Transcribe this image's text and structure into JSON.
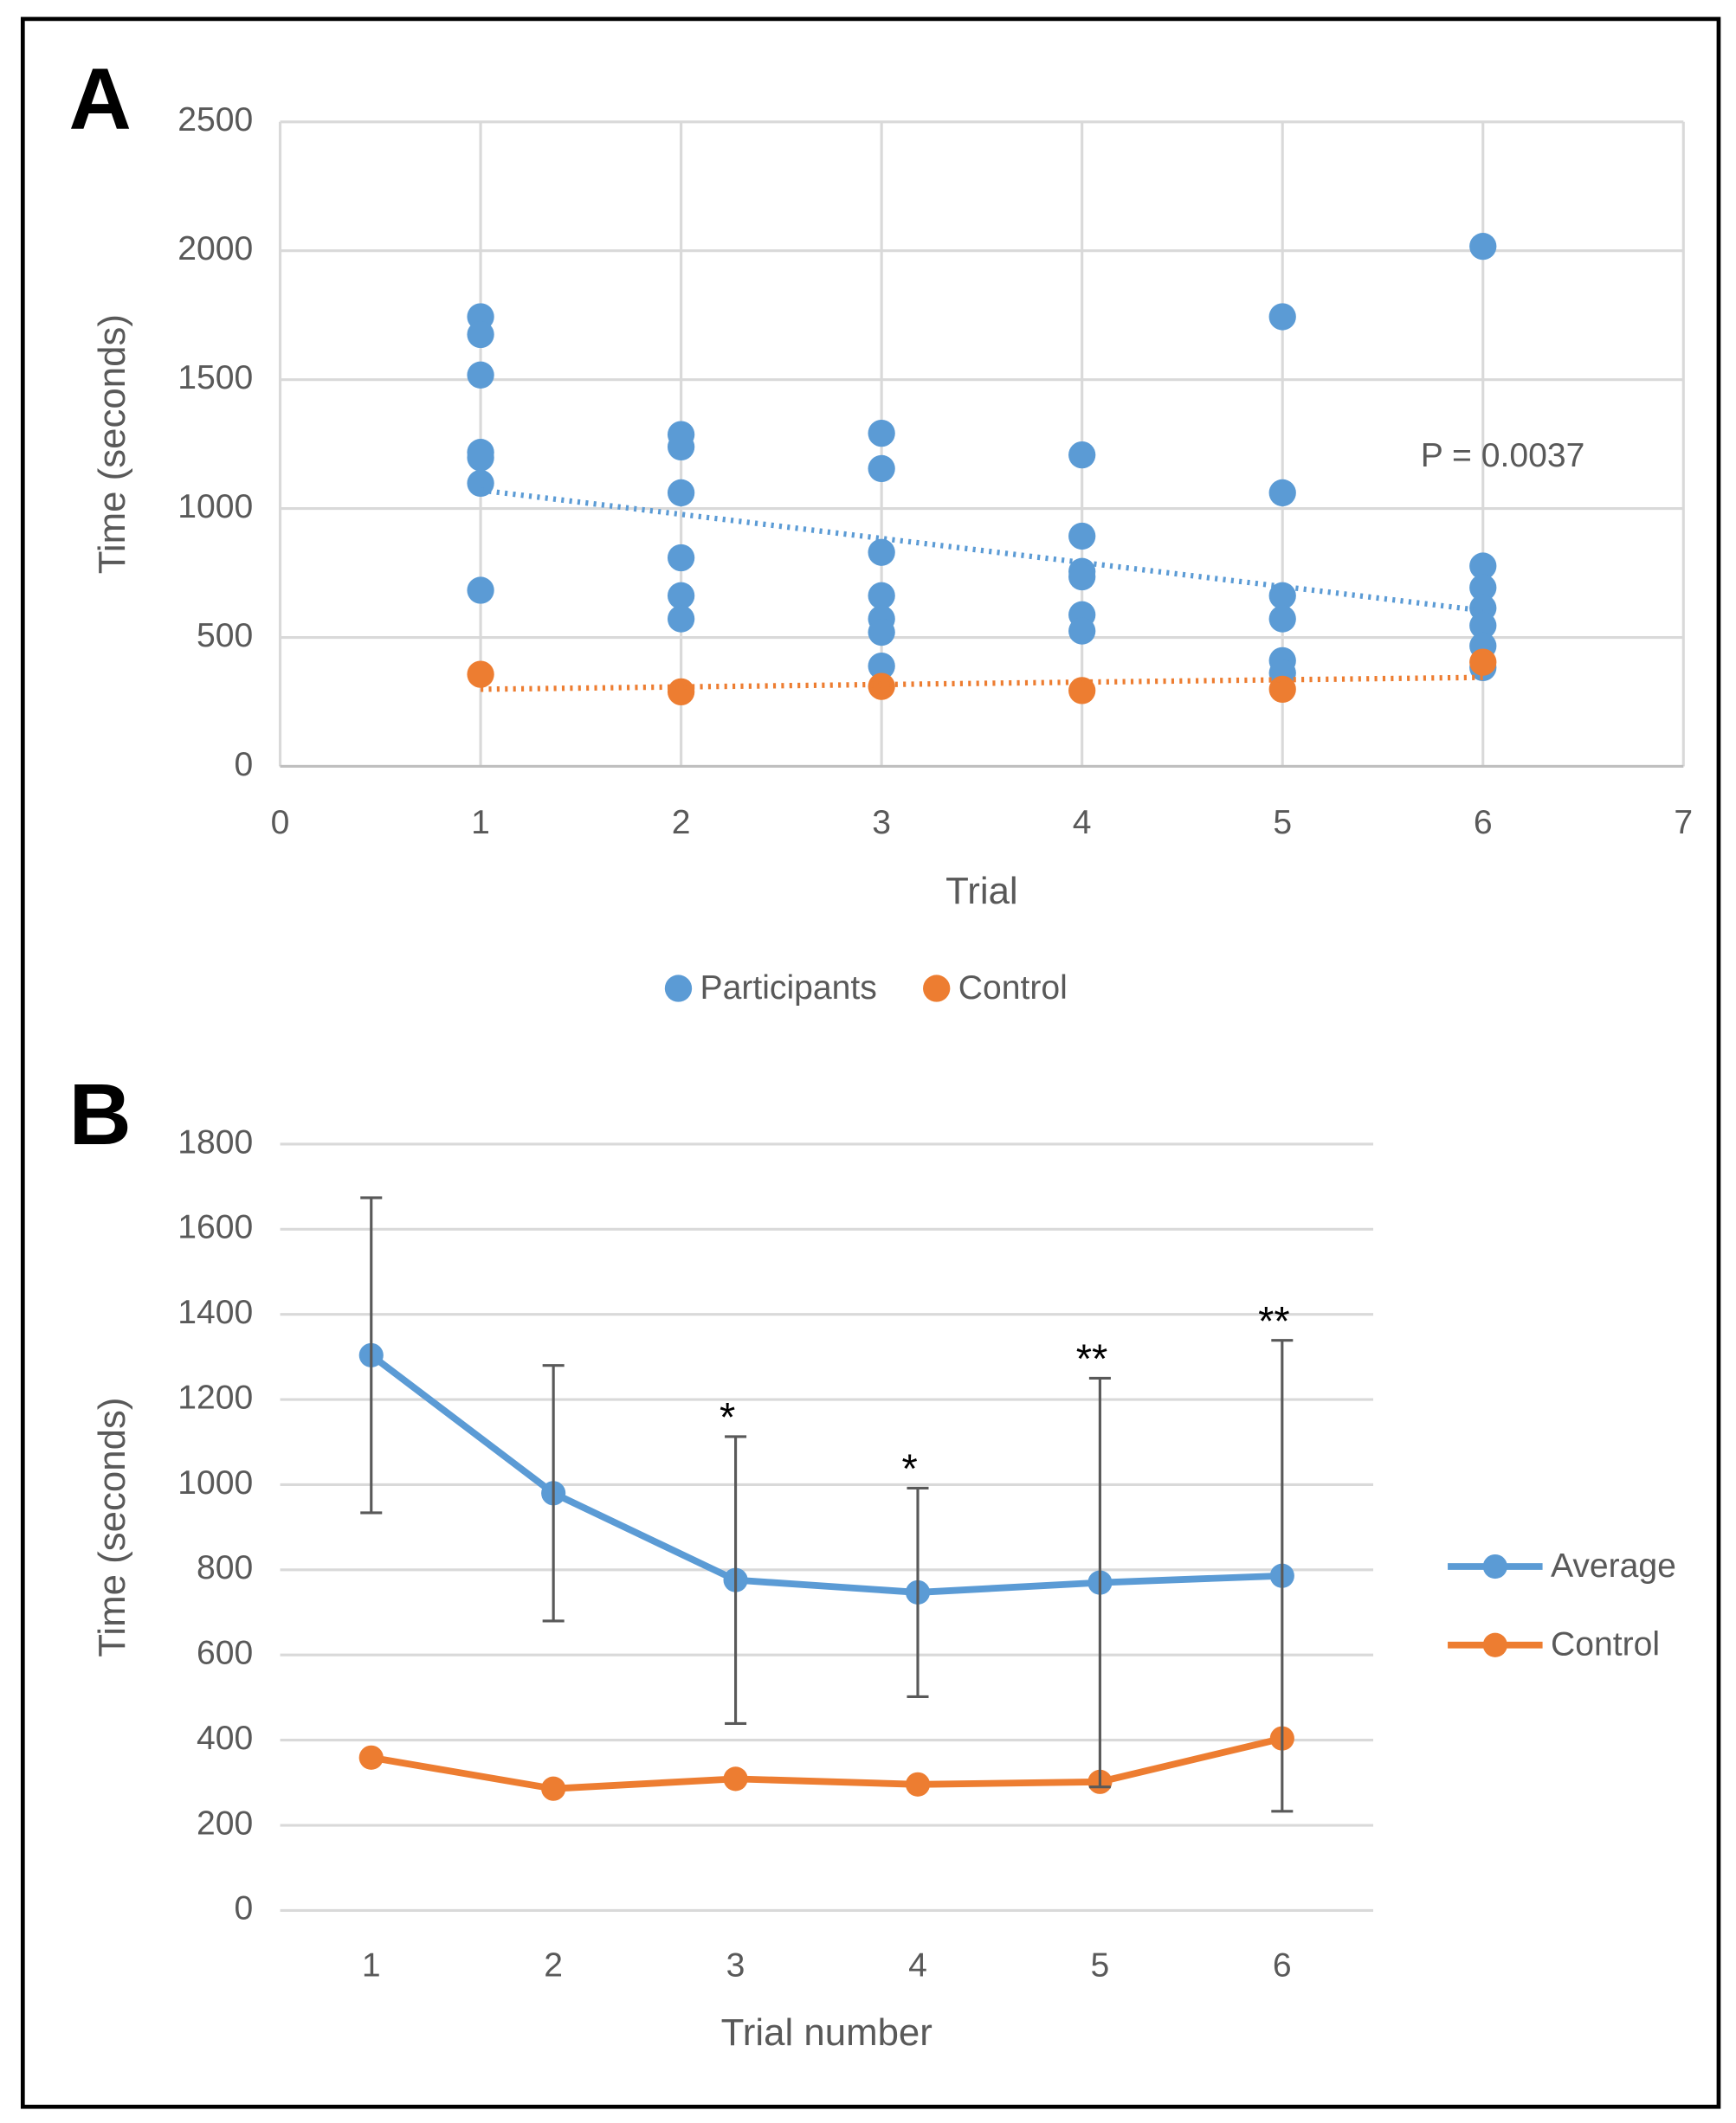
{
  "chart_data": [
    {
      "type": "scatter",
      "panel": "A",
      "xlabel": "Trial",
      "ylabel": "Time (seconds)",
      "xlim": [
        0,
        7
      ],
      "xticks": [
        0,
        1,
        2,
        3,
        4,
        5,
        6,
        7
      ],
      "ylim": [
        0,
        2500
      ],
      "yticks": [
        0,
        500,
        1000,
        1500,
        2000,
        2500
      ],
      "grid": true,
      "legend": "bottom",
      "annotation": "P = 0.0037",
      "series": [
        {
          "name": "Participants",
          "color": "#5b9bd5",
          "x": [
            1,
            1,
            1,
            1,
            1,
            1,
            1,
            2,
            2,
            2,
            2,
            2,
            2,
            3,
            3,
            3,
            3,
            3,
            3,
            3,
            4,
            4,
            4,
            4,
            4,
            4,
            5,
            5,
            5,
            5,
            5,
            5,
            6,
            6,
            6,
            6,
            6,
            6,
            6
          ],
          "values": [
            1744,
            1675,
            1518,
            1218,
            1197,
            1098,
            683,
            1287,
            1239,
            1061,
            809,
            662,
            572,
            1292,
            1155,
            830,
            662,
            572,
            520,
            389,
            1208,
            893,
            756,
            735,
            588,
            525,
            1744,
            1061,
            662,
            572,
            410,
            362,
            2017,
            777,
            693,
            614,
            546,
            467,
            383
          ],
          "trend_x": [
            1,
            6
          ],
          "trend_y": [
            1071,
            604
          ]
        },
        {
          "name": "Control",
          "color": "#ed7d31",
          "x": [
            1,
            2,
            3,
            4,
            5,
            6
          ],
          "values": [
            357,
            289,
            310,
            294,
            299,
            404
          ],
          "trend_x": [
            1,
            6
          ],
          "trend_y": [
            299,
            345
          ]
        }
      ]
    },
    {
      "type": "line",
      "panel": "B",
      "xlabel": "Trial number",
      "ylabel": "Time (seconds)",
      "categories": [
        "1",
        "2",
        "3",
        "4",
        "5",
        "6"
      ],
      "ylim": [
        0,
        1800
      ],
      "yticks": [
        0,
        200,
        400,
        600,
        800,
        1000,
        1200,
        1400,
        1600,
        1800
      ],
      "grid": true,
      "legend": "right",
      "annotations": [
        {
          "category": "3",
          "text": "*"
        },
        {
          "category": "4",
          "text": "*"
        },
        {
          "category": "5",
          "text": "**"
        },
        {
          "category": "6",
          "text": "**"
        }
      ],
      "series": [
        {
          "name": "Average",
          "color": "#5b9bd5",
          "values": [
            1304,
            980,
            776,
            747,
            770,
            786
          ],
          "errors": [
            370,
            300,
            337,
            245,
            480,
            553
          ]
        },
        {
          "name": "Control",
          "color": "#ed7d31",
          "values": [
            359,
            286,
            309,
            296,
            302,
            404
          ]
        }
      ]
    }
  ]
}
